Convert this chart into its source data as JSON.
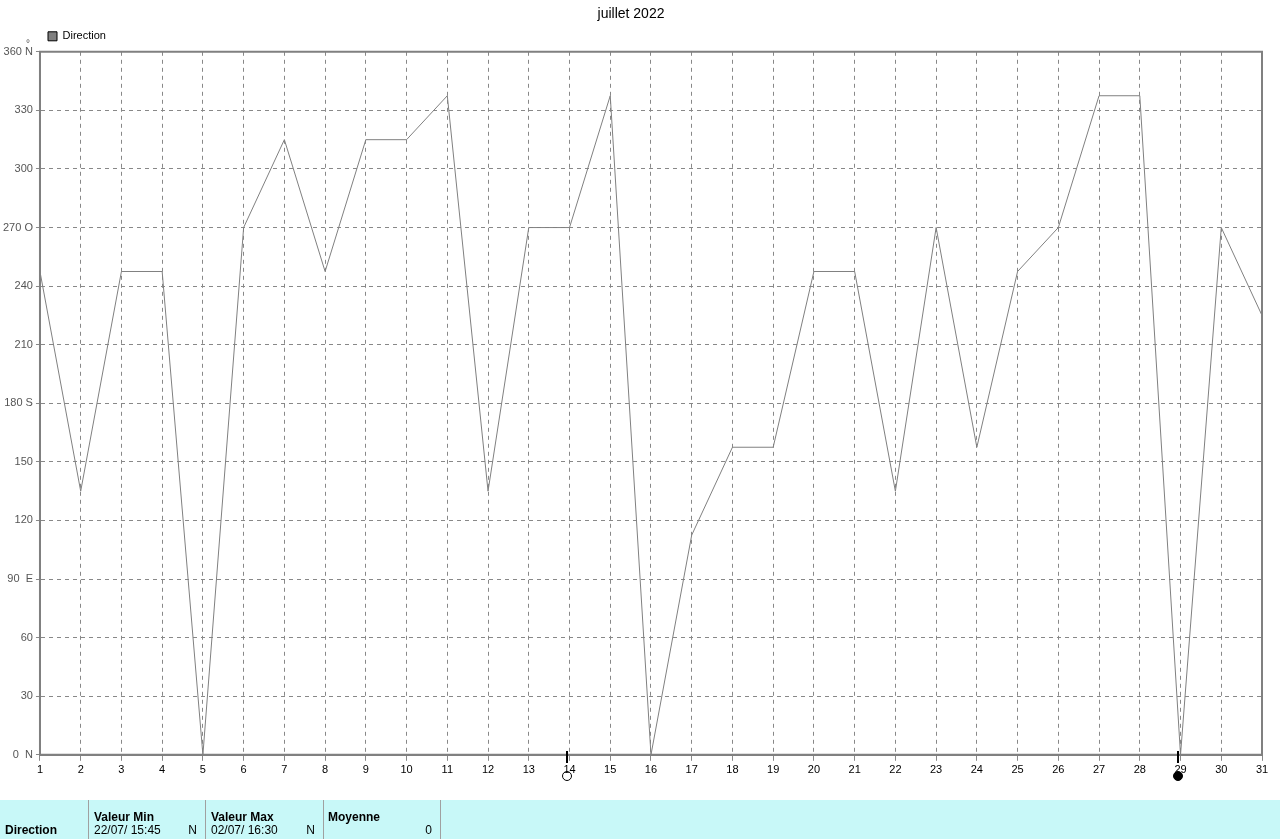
{
  "chart_data": {
    "type": "line",
    "title": "juillet 2022",
    "ylabel": "°",
    "legend": "top left",
    "grid": true,
    "marker": "none",
    "line_style": "solid",
    "x": [
      1,
      2,
      3,
      4,
      5,
      6,
      7,
      8,
      9,
      10,
      11,
      12,
      13,
      14,
      15,
      16,
      17,
      18,
      19,
      20,
      21,
      22,
      23,
      24,
      25,
      26,
      27,
      28,
      29,
      30,
      31
    ],
    "xlim": [
      1,
      31
    ],
    "xticks": [
      1,
      2,
      3,
      4,
      5,
      6,
      7,
      8,
      9,
      10,
      11,
      12,
      13,
      14,
      15,
      16,
      17,
      18,
      19,
      20,
      21,
      22,
      23,
      24,
      25,
      26,
      27,
      28,
      29,
      30,
      31
    ],
    "ylim": [
      0,
      360
    ],
    "yticks": [
      {
        "value": 0,
        "label": "0  N"
      },
      30,
      60,
      {
        "value": 90,
        "label": "90  E"
      },
      120,
      150,
      {
        "value": 180,
        "label": "180 S"
      },
      210,
      240,
      {
        "value": 270,
        "label": "270 O"
      },
      300,
      330,
      {
        "value": 360,
        "label": "360 N"
      }
    ],
    "series": [
      {
        "name": "Direction",
        "color": "#808080",
        "values": [
          247.5,
          135,
          247.5,
          247.5,
          0,
          270,
          315,
          247.5,
          315,
          315,
          337.5,
          135,
          270,
          270,
          337.5,
          0,
          112.5,
          157.5,
          157.5,
          247.5,
          247.5,
          135,
          270,
          157.5,
          247.5,
          270,
          337.5,
          337.5,
          0,
          270,
          225
        ]
      }
    ],
    "annotations": [
      "Direction",
      "Valeur Min",
      "22/07/  15:45",
      "N",
      "Valeur Max",
      "02/07/  16:30",
      "N",
      "Moyenne",
      "0"
    ]
  }
}
